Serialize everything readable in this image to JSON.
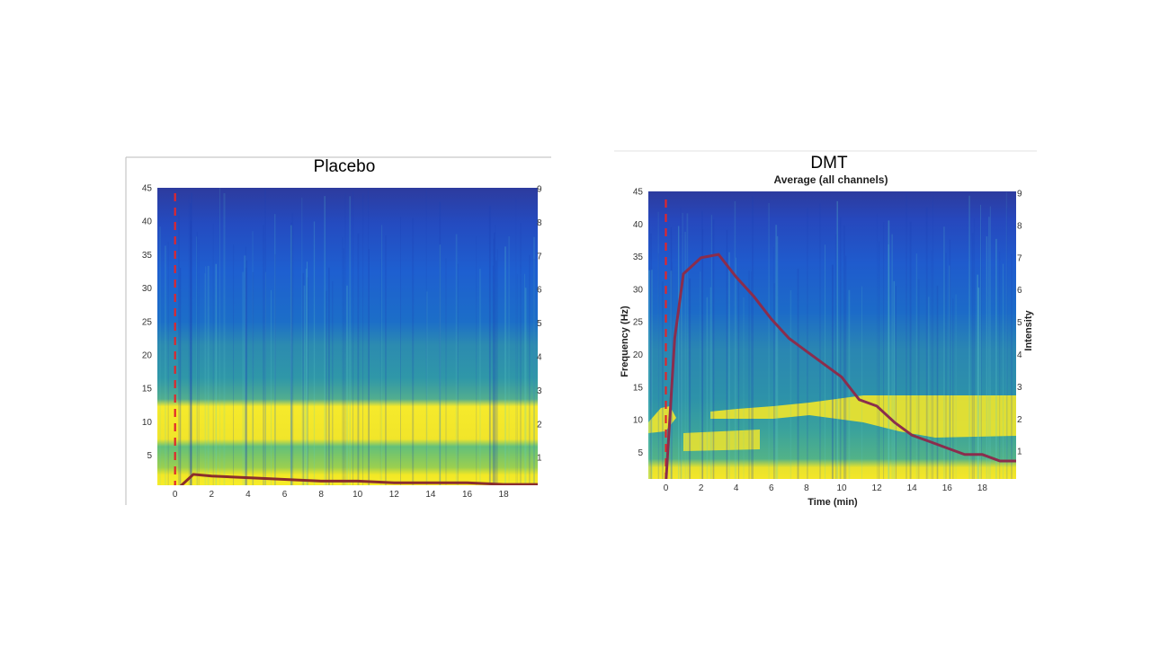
{
  "chart_data": [
    {
      "id": "placebo",
      "type": "heatmap",
      "title": "Placebo",
      "subtitle": "",
      "xlabel": "",
      "ylabel": "",
      "y2label": "",
      "xlim": [
        -1,
        20
      ],
      "ylim": [
        1,
        45
      ],
      "y2lim": [
        0,
        9
      ],
      "xticks": [
        0,
        2,
        4,
        6,
        8,
        10,
        12,
        14,
        16,
        18
      ],
      "yticks": [
        5,
        10,
        15,
        20,
        25,
        30,
        35,
        40,
        45
      ],
      "y2ticks": [
        1,
        2,
        3,
        4,
        5,
        6,
        7,
        8,
        9
      ],
      "injection_time": 0,
      "bands": [
        {
          "from": 1,
          "to": 3,
          "power": "high"
        },
        {
          "from": 3,
          "to": 8,
          "power": "medium"
        },
        {
          "from": 8,
          "to": 13,
          "power": "high"
        },
        {
          "from": 13,
          "to": 22,
          "power": "medium-low"
        },
        {
          "from": 22,
          "to": 45,
          "power": "low"
        }
      ],
      "intensity_series": {
        "name": "Intensity",
        "x": [
          0,
          1,
          2,
          4,
          6,
          8,
          10,
          12,
          14,
          16,
          18,
          20
        ],
        "values": [
          0,
          0.5,
          0.45,
          0.4,
          0.35,
          0.3,
          0.3,
          0.25,
          0.25,
          0.25,
          0.2,
          0.2
        ]
      }
    },
    {
      "id": "dmt",
      "type": "heatmap",
      "title": "DMT",
      "subtitle": "Average (all channels)",
      "xlabel": "Time (min)",
      "ylabel": "Frequency (Hz)",
      "y2label": "Intensity",
      "xlim": [
        -1,
        20
      ],
      "ylim": [
        1,
        45
      ],
      "y2lim": [
        0,
        9
      ],
      "xticks": [
        0,
        2,
        4,
        6,
        8,
        10,
        12,
        14,
        16,
        18
      ],
      "yticks": [
        5,
        10,
        15,
        20,
        25,
        30,
        35,
        40,
        45
      ],
      "y2ticks": [
        1,
        2,
        3,
        4,
        5,
        6,
        7,
        8,
        9
      ],
      "injection_time": 0,
      "intensity_series": {
        "name": "Intensity",
        "x": [
          0,
          0.5,
          1,
          2,
          3,
          4,
          5,
          6,
          7,
          8,
          9,
          10,
          11,
          12,
          13,
          14,
          15,
          16,
          17,
          18,
          19,
          20
        ],
        "values": [
          0,
          4.5,
          6.5,
          7,
          7.1,
          6.4,
          5.8,
          5.1,
          4.5,
          4.1,
          3.7,
          3.3,
          2.6,
          2.4,
          1.9,
          1.5,
          1.3,
          1.1,
          0.9,
          0.9,
          0.7,
          0.7
        ]
      }
    }
  ]
}
